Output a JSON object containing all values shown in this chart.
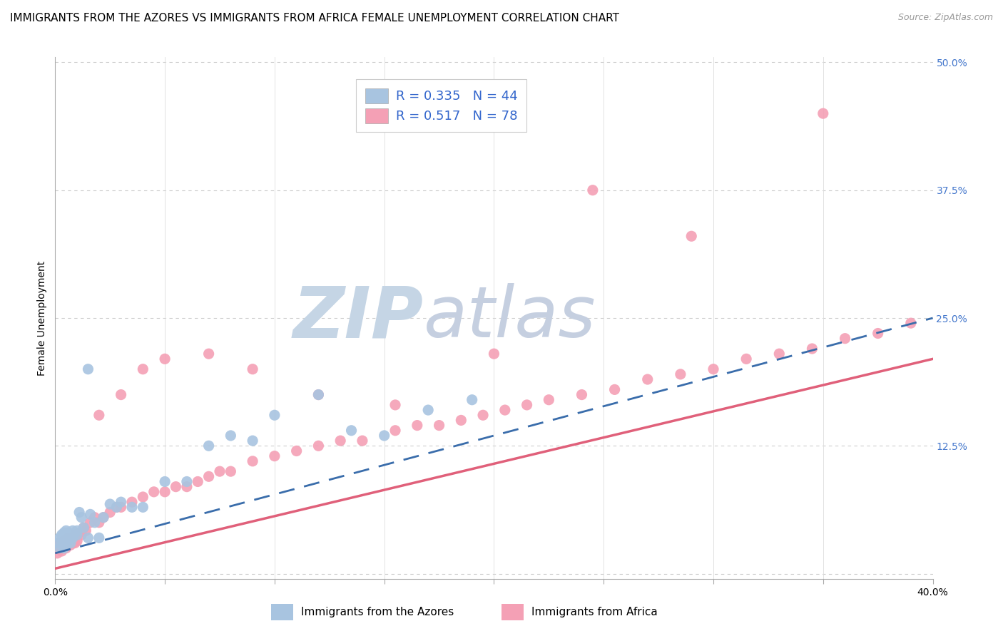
{
  "title": "IMMIGRANTS FROM THE AZORES VS IMMIGRANTS FROM AFRICA FEMALE UNEMPLOYMENT CORRELATION CHART",
  "source": "Source: ZipAtlas.com",
  "ylabel": "Female Unemployment",
  "xlim": [
    0.0,
    0.4
  ],
  "ylim": [
    -0.005,
    0.505
  ],
  "ytick_positions": [
    0.0,
    0.125,
    0.25,
    0.375,
    0.5
  ],
  "yticklabels_right": [
    "",
    "12.5%",
    "25.0%",
    "37.5%",
    "50.0%"
  ],
  "xtick_positions": [
    0.0,
    0.05,
    0.1,
    0.15,
    0.2,
    0.25,
    0.3,
    0.35,
    0.4
  ],
  "series1_color": "#a8c4e0",
  "series2_color": "#f4a0b5",
  "series1_line_color": "#3a6dab",
  "series2_line_color": "#e0607a",
  "legend_text1": "R = 0.335   N = 44",
  "legend_text2": "R = 0.517   N = 78",
  "watermark_zip": "ZIP",
  "watermark_atlas": "atlas",
  "watermark_color_zip": "#c5d5e5",
  "watermark_color_atlas": "#c5cfe0",
  "series1_x": [
    0.001,
    0.002,
    0.002,
    0.003,
    0.003,
    0.004,
    0.004,
    0.005,
    0.005,
    0.005,
    0.006,
    0.006,
    0.007,
    0.007,
    0.008,
    0.008,
    0.009,
    0.01,
    0.01,
    0.011,
    0.012,
    0.013,
    0.015,
    0.016,
    0.018,
    0.02,
    0.022,
    0.025,
    0.028,
    0.03,
    0.035,
    0.04,
    0.05,
    0.06,
    0.07,
    0.08,
    0.09,
    0.1,
    0.12,
    0.135,
    0.15,
    0.17,
    0.19,
    0.015
  ],
  "series1_y": [
    0.03,
    0.035,
    0.025,
    0.038,
    0.03,
    0.04,
    0.025,
    0.042,
    0.035,
    0.028,
    0.04,
    0.032,
    0.038,
    0.03,
    0.042,
    0.035,
    0.04,
    0.038,
    0.042,
    0.06,
    0.055,
    0.045,
    0.035,
    0.058,
    0.05,
    0.035,
    0.055,
    0.068,
    0.065,
    0.07,
    0.065,
    0.065,
    0.09,
    0.09,
    0.125,
    0.135,
    0.13,
    0.155,
    0.175,
    0.14,
    0.135,
    0.16,
    0.17,
    0.2
  ],
  "series2_x": [
    0.001,
    0.001,
    0.002,
    0.002,
    0.003,
    0.003,
    0.004,
    0.004,
    0.005,
    0.005,
    0.006,
    0.006,
    0.007,
    0.007,
    0.008,
    0.008,
    0.009,
    0.009,
    0.01,
    0.01,
    0.011,
    0.012,
    0.013,
    0.014,
    0.016,
    0.018,
    0.02,
    0.022,
    0.025,
    0.028,
    0.03,
    0.035,
    0.04,
    0.045,
    0.05,
    0.055,
    0.06,
    0.065,
    0.07,
    0.075,
    0.08,
    0.09,
    0.1,
    0.11,
    0.12,
    0.13,
    0.14,
    0.155,
    0.165,
    0.175,
    0.185,
    0.195,
    0.205,
    0.215,
    0.225,
    0.24,
    0.255,
    0.27,
    0.285,
    0.3,
    0.315,
    0.33,
    0.345,
    0.36,
    0.375,
    0.39,
    0.02,
    0.03,
    0.04,
    0.05,
    0.07,
    0.09,
    0.12,
    0.155,
    0.2,
    0.245,
    0.29,
    0.35
  ],
  "series2_y": [
    0.02,
    0.025,
    0.025,
    0.03,
    0.022,
    0.028,
    0.025,
    0.032,
    0.028,
    0.025,
    0.03,
    0.035,
    0.028,
    0.032,
    0.03,
    0.035,
    0.03,
    0.038,
    0.032,
    0.038,
    0.04,
    0.038,
    0.045,
    0.042,
    0.05,
    0.055,
    0.05,
    0.055,
    0.06,
    0.065,
    0.065,
    0.07,
    0.075,
    0.08,
    0.08,
    0.085,
    0.085,
    0.09,
    0.095,
    0.1,
    0.1,
    0.11,
    0.115,
    0.12,
    0.125,
    0.13,
    0.13,
    0.14,
    0.145,
    0.145,
    0.15,
    0.155,
    0.16,
    0.165,
    0.17,
    0.175,
    0.18,
    0.19,
    0.195,
    0.2,
    0.21,
    0.215,
    0.22,
    0.23,
    0.235,
    0.245,
    0.155,
    0.175,
    0.2,
    0.21,
    0.215,
    0.2,
    0.175,
    0.165,
    0.215,
    0.375,
    0.33,
    0.45
  ],
  "grid_color": "#cccccc",
  "background_color": "#ffffff",
  "title_fontsize": 11,
  "tick_fontsize": 10,
  "source_fontsize": 9,
  "legend_fontsize": 13,
  "series1_line_x": [
    0.0,
    0.4
  ],
  "series1_line_y": [
    0.02,
    0.25
  ],
  "series2_line_x": [
    0.0,
    0.4
  ],
  "series2_line_y": [
    0.005,
    0.21
  ]
}
